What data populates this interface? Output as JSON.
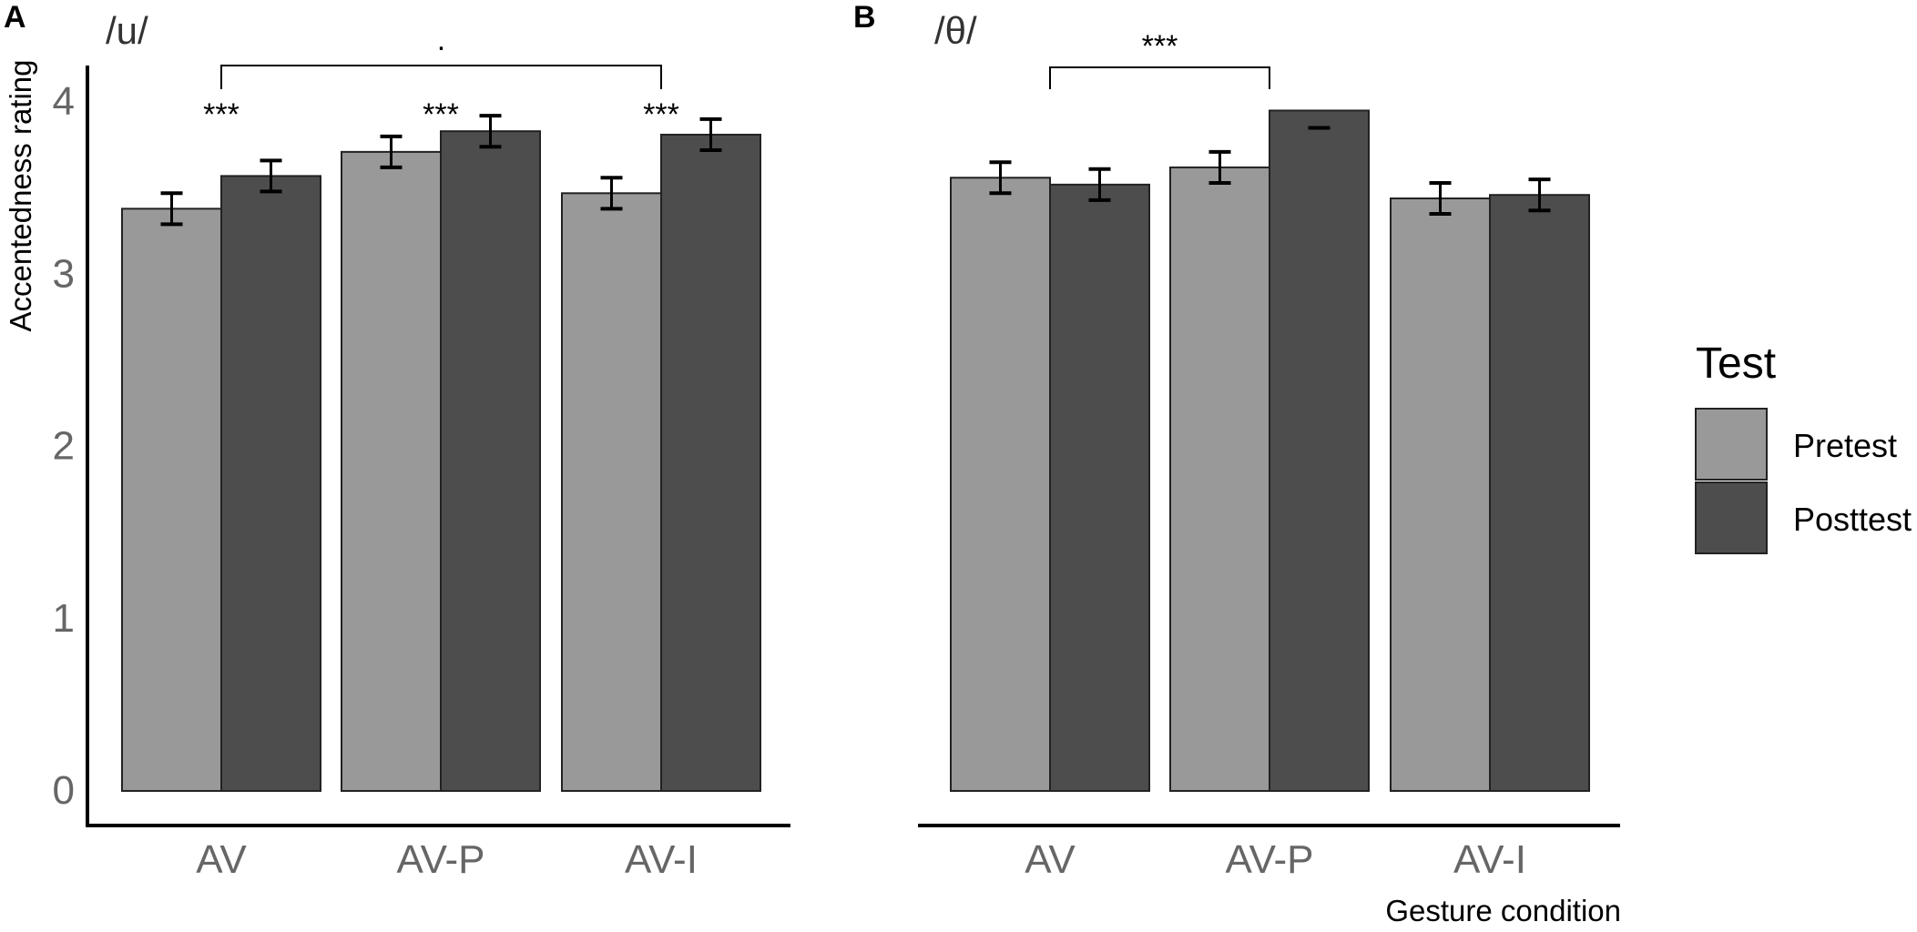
{
  "chart_data": [
    {
      "type": "bar",
      "panel_label": "A",
      "title": "/u/",
      "ylabel": "Accentedness rating",
      "xlabel": "",
      "categories": [
        "AV",
        "AV-P",
        "AV-I"
      ],
      "ylim": [
        0,
        4
      ],
      "y_ticks": [
        0,
        1,
        2,
        3,
        4
      ],
      "series": [
        {
          "name": "Pretest",
          "values": [
            3.38,
            3.71,
            3.47
          ],
          "err": [
            0.09,
            0.09,
            0.09
          ]
        },
        {
          "name": "Posttest",
          "values": [
            3.57,
            3.83,
            3.81
          ],
          "err": [
            0.09,
            0.09,
            0.09
          ]
        }
      ],
      "annotations": [
        {
          "text": "***",
          "category": "AV"
        },
        {
          "text": "***",
          "category": "AV-P"
        },
        {
          "text": "***",
          "category": "AV-I"
        },
        {
          "text": ".",
          "bracket": [
            "AV",
            "AV-I"
          ]
        }
      ],
      "grid": false
    },
    {
      "type": "bar",
      "panel_label": "B",
      "title": "/θ/",
      "ylabel": "",
      "xlabel": "Gesture condition",
      "categories": [
        "AV",
        "AV-P",
        "AV-I"
      ],
      "ylim": [
        0,
        4
      ],
      "y_ticks": [],
      "series": [
        {
          "name": "Pretest",
          "values": [
            3.56,
            3.62,
            3.44
          ],
          "err": [
            0.09,
            0.09,
            0.09
          ]
        },
        {
          "name": "Posttest",
          "values": [
            3.52,
            3.95,
            3.46
          ],
          "err": [
            0.09,
            0.0,
            0.09
          ]
        }
      ],
      "annotations": [
        {
          "text": "***",
          "bracket": [
            "AV",
            "AV-P"
          ]
        }
      ],
      "grid": false
    }
  ],
  "legend": {
    "title": "Test",
    "items": [
      "Pretest",
      "Posttest"
    ]
  },
  "colors": {
    "pretest": "#999999",
    "posttest": "#4d4d4d",
    "outline": "#222222",
    "axis": "#000000"
  }
}
